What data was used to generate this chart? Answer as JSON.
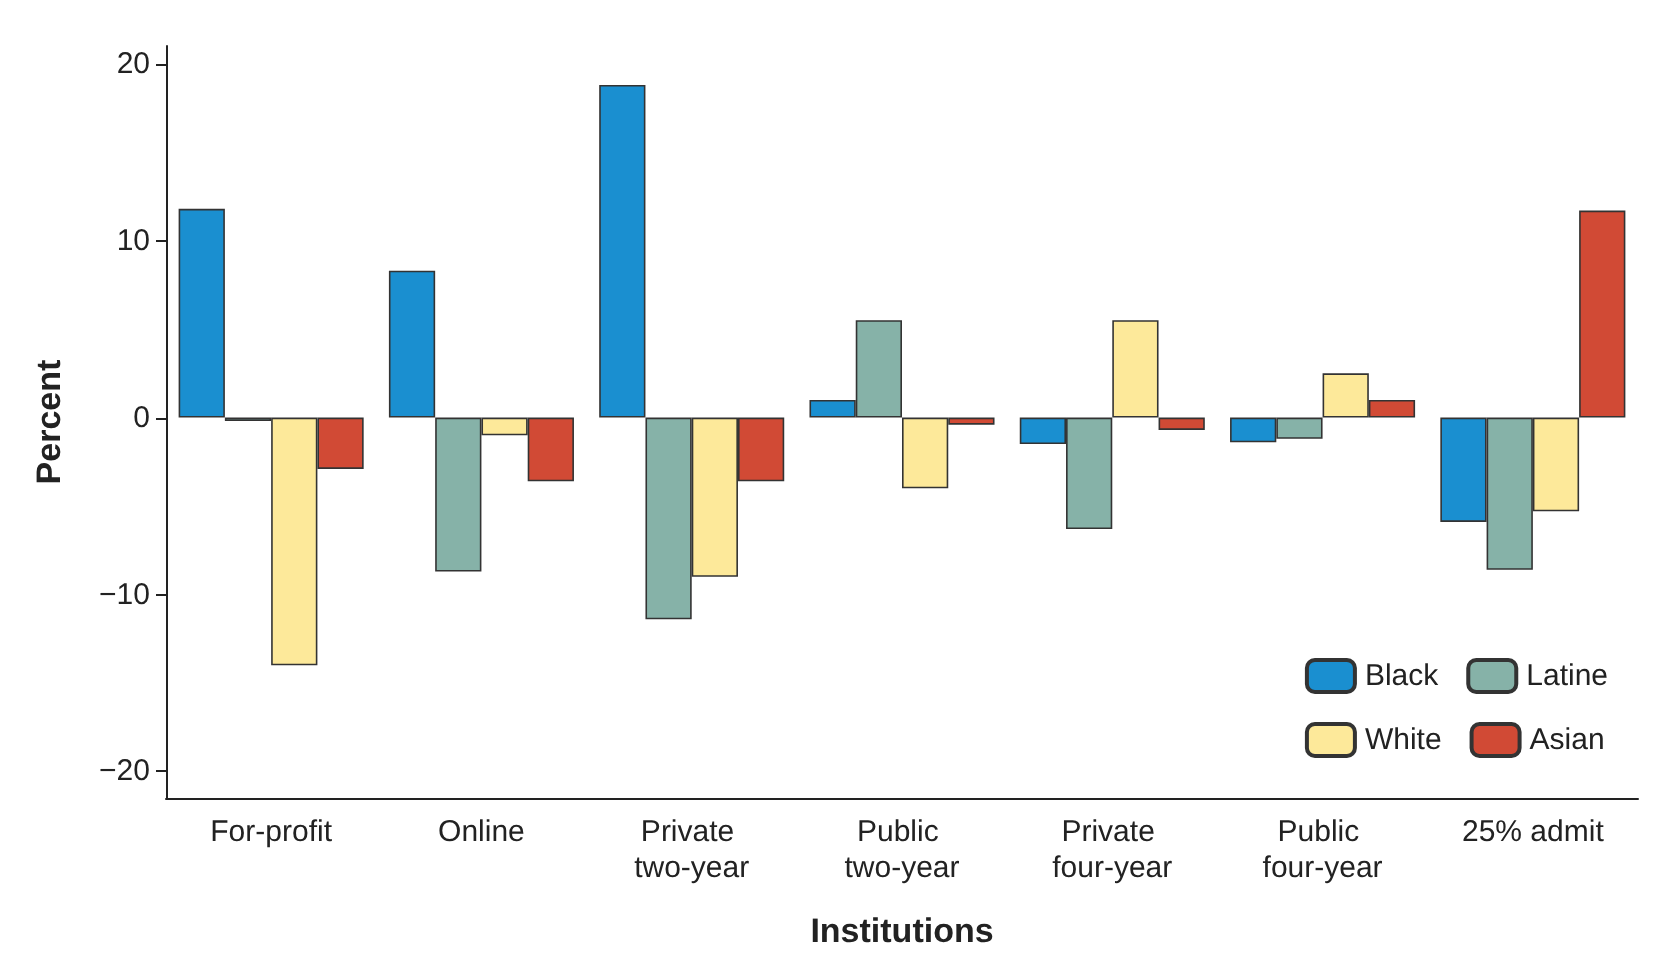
{
  "chart_data": {
    "type": "bar",
    "xlabel": "Institutions",
    "ylabel": "Percent",
    "categories": [
      "For-profit",
      "Online",
      "Private two-year",
      "Public two-year",
      "Private four-year",
      "Public four-year",
      "25% admit"
    ],
    "series": [
      {
        "name": "Black",
        "color": "#1a8fd0",
        "values": [
          11.8,
          8.3,
          18.8,
          1.0,
          -1.5,
          -1.4,
          -5.9
        ]
      },
      {
        "name": "Latine",
        "color": "#86b2a8",
        "values": [
          -0.2,
          -8.7,
          -11.4,
          5.5,
          -6.3,
          -1.2,
          -8.6
        ]
      },
      {
        "name": "White",
        "color": "#fde99a",
        "values": [
          -14.0,
          -1.0,
          -9.0,
          -4.0,
          5.5,
          2.5,
          -5.3
        ]
      },
      {
        "name": "Asian",
        "color": "#d14a35",
        "values": [
          -2.9,
          -3.6,
          -3.6,
          -0.4,
          -0.7,
          1.0,
          11.7
        ]
      }
    ],
    "ylim": [
      -21.5,
      21
    ],
    "yticks": [
      {
        "value": -20,
        "label": "−20"
      },
      {
        "value": -10,
        "label": "−10"
      },
      0,
      10,
      20
    ],
    "grid": false,
    "legend": "bottom right"
  }
}
